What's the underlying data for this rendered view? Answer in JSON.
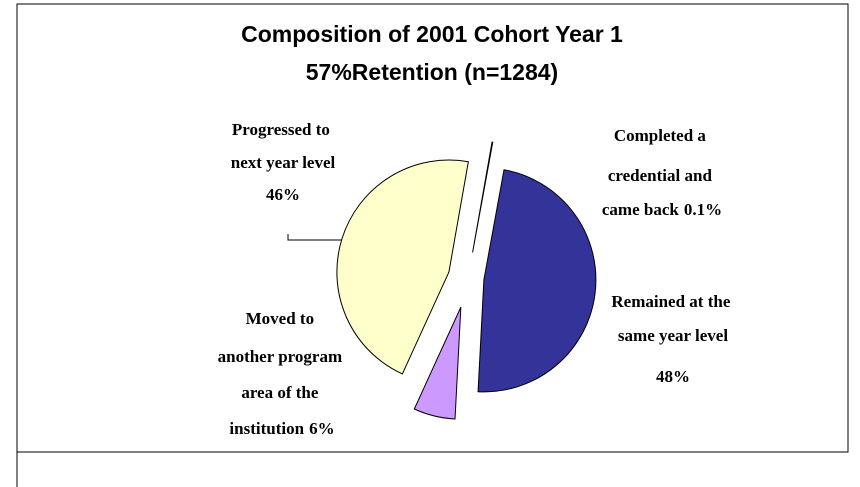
{
  "chart_data": {
    "type": "pie",
    "title": "Composition of 2001 Cohort Year 1",
    "subtitle": "57%Retention  (n=1284)",
    "categories": [
      "Completed a credential and came back",
      "Remained at the same year level",
      "Moved to another program area of the institution",
      "Progressed to next year level"
    ],
    "values": [
      0.1,
      48,
      6,
      46
    ],
    "value_labels": [
      "0.1%",
      "48%",
      "6%",
      "46%"
    ],
    "colors": [
      "#ffffff",
      "#333399",
      "#cc99ff",
      "#ffffcc"
    ]
  }
}
